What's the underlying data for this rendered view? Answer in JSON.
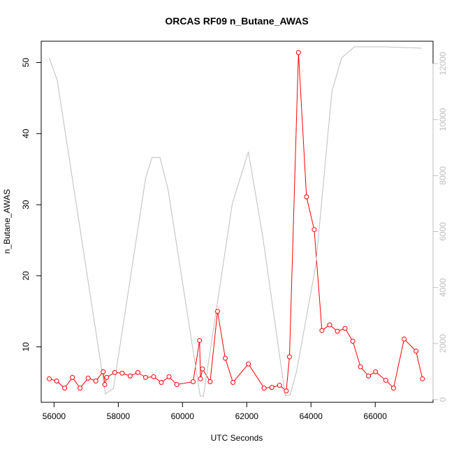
{
  "chart_data": {
    "type": "line",
    "title": "ORCAS RF09 n_Butane_AWAS",
    "xlabel": "UTC Seconds",
    "ylabel": "n_Butane_AWAS",
    "xlim": [
      55600,
      67800
    ],
    "ylim": [
      2.2,
      53.0
    ],
    "y2lim": [
      -100,
      12800
    ],
    "x_ticks": [
      56000,
      58000,
      60000,
      62000,
      64000,
      66000
    ],
    "y_ticks": [
      10,
      20,
      30,
      40,
      50
    ],
    "y2_ticks": [
      0,
      2000,
      4000,
      6000,
      8000,
      10000,
      12000
    ],
    "grid": false,
    "series": [
      {
        "color": "#ff0000",
        "marker": "open-circle",
        "axis": "left",
        "x": [
          55850,
          56080,
          56330,
          56570,
          56810,
          57060,
          57300,
          57530,
          57580,
          57640,
          57890,
          58120,
          58370,
          58610,
          58850,
          59100,
          59340,
          59580,
          59820,
          60330,
          60530,
          60560,
          60620,
          60860,
          61090,
          61330,
          61570,
          62050,
          62540,
          62780,
          63020,
          63230,
          63330,
          63610,
          63860,
          64100,
          64340,
          64580,
          64820,
          65060,
          65300,
          65540,
          65790,
          66010,
          66330,
          66570,
          66900,
          67270,
          67470
        ],
        "y": [
          5.5,
          5.2,
          4.2,
          5.7,
          4.2,
          5.6,
          5.2,
          6.5,
          4.7,
          5.7,
          6.4,
          6.3,
          5.9,
          6.4,
          5.7,
          5.8,
          5.0,
          5.8,
          4.7,
          5.1,
          10.9,
          5.5,
          6.9,
          5.1,
          15.0,
          8.4,
          5.0,
          7.6,
          4.2,
          4.3,
          4.6,
          3.8,
          8.6,
          51.4,
          31.1,
          26.5,
          12.3,
          13.1,
          12.2,
          12.6,
          10.8,
          7.2,
          5.9,
          6.5,
          5.3,
          4.2,
          11.1,
          9.4,
          5.5
        ]
      },
      {
        "color": "#bebebe",
        "marker": "none",
        "axis": "right",
        "x": [
          55850,
          56100,
          57600,
          57850,
          58850,
          59050,
          59300,
          59550,
          60550,
          60650,
          61550,
          62050,
          62500,
          63200,
          63350,
          63550,
          64150,
          64650,
          64950,
          65350,
          65850,
          66300,
          67450
        ],
        "y": [
          12200,
          11400,
          200,
          400,
          7900,
          8650,
          8650,
          7500,
          120,
          120,
          7000,
          8850,
          5800,
          130,
          170,
          1000,
          4800,
          11000,
          12200,
          12600,
          12600,
          12600,
          12550
        ]
      }
    ]
  }
}
